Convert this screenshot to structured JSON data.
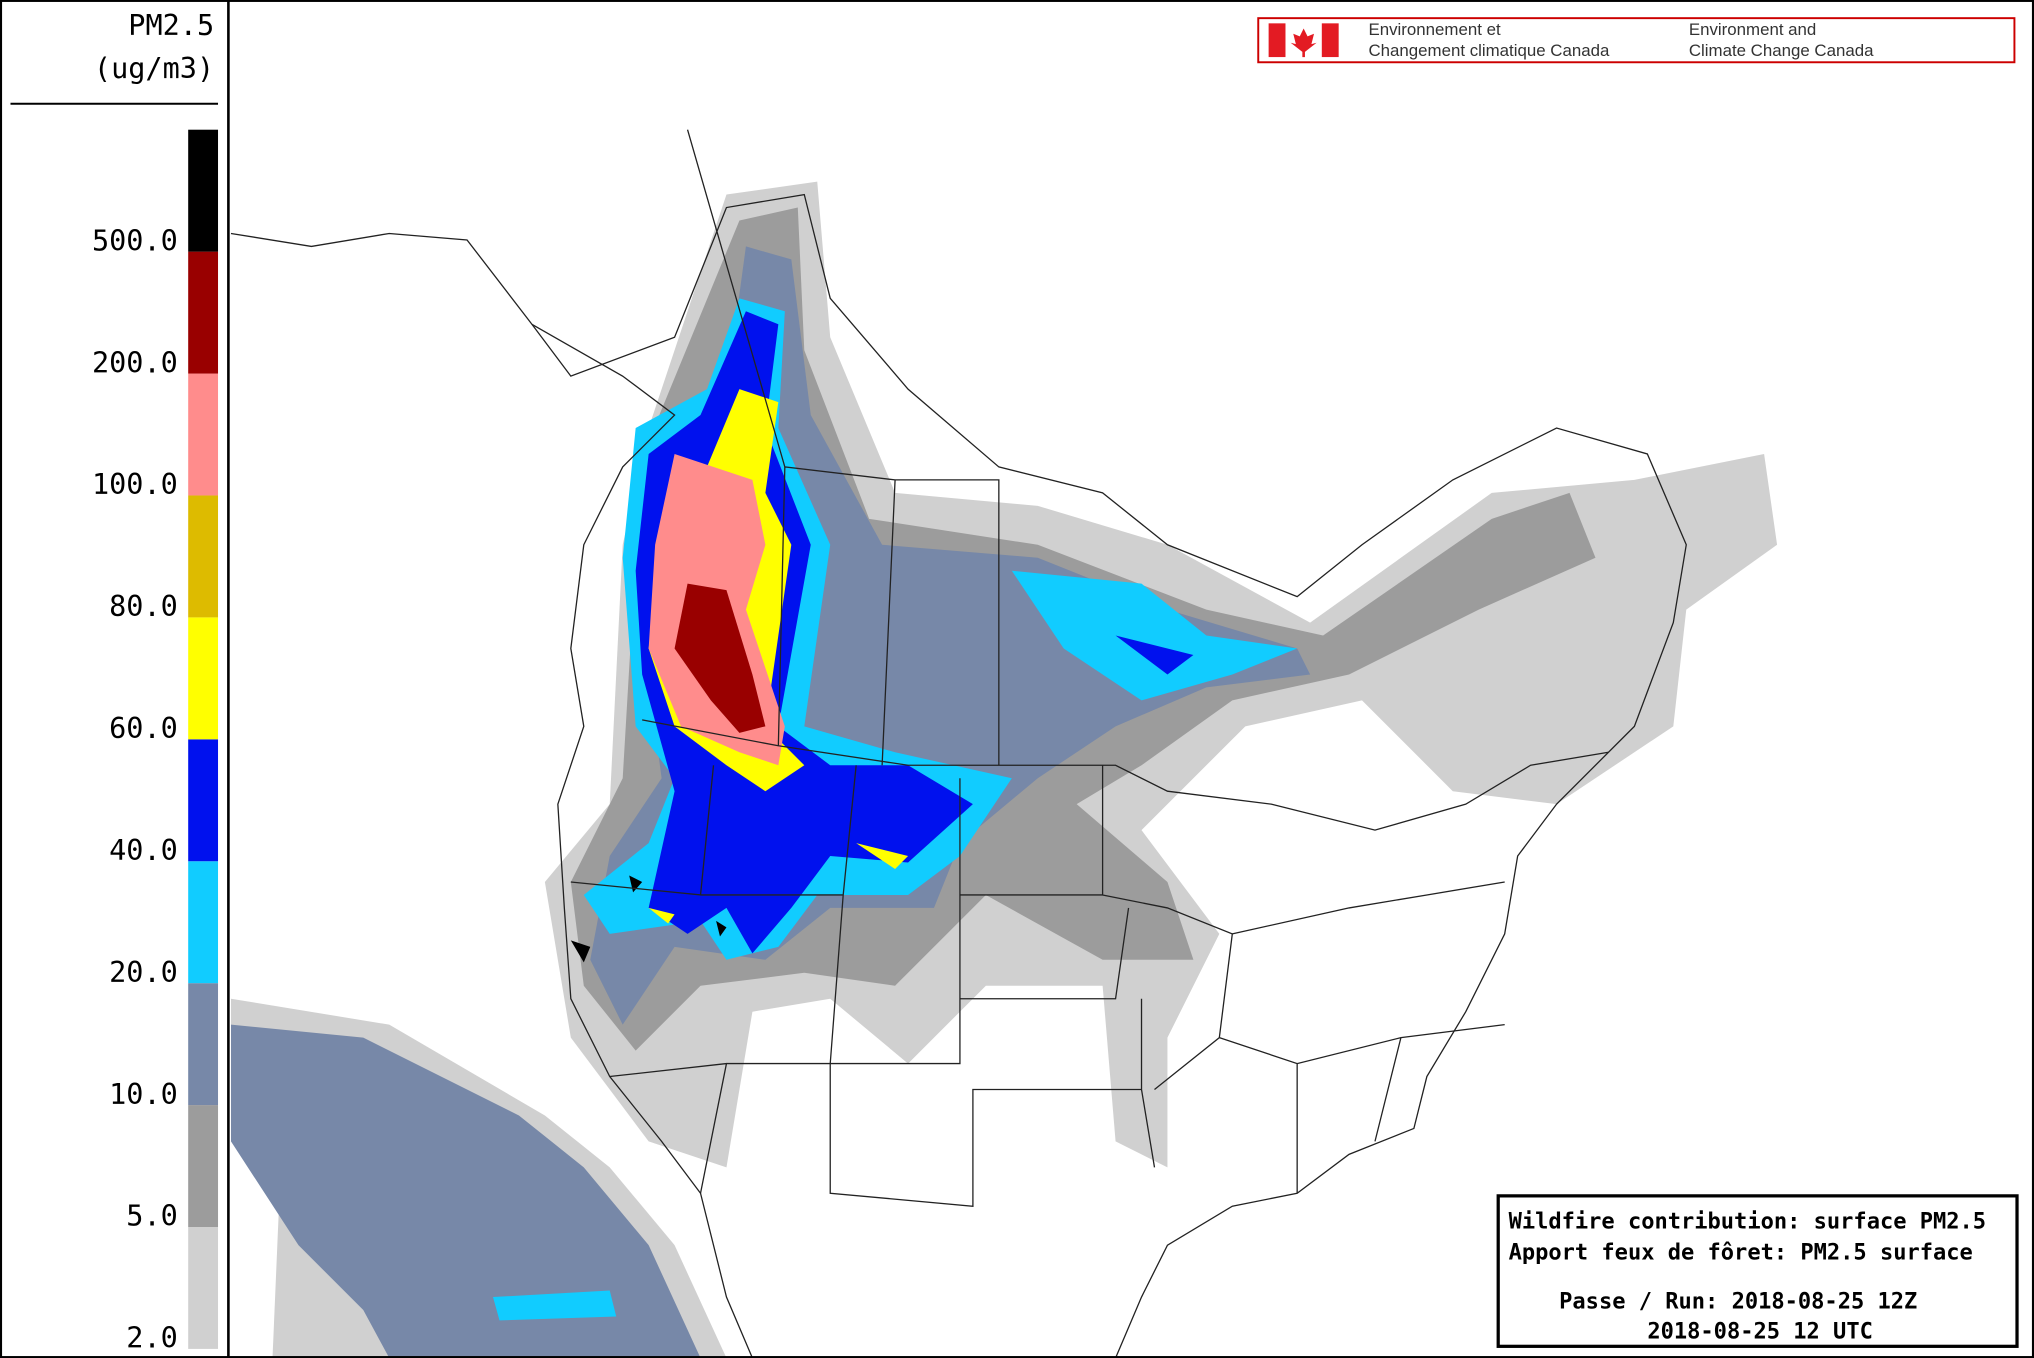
{
  "legend": {
    "title": "PM2.5",
    "units": "(ug/m3)",
    "levels": [
      {
        "label": "2.0",
        "color": "#d0d0d0"
      },
      {
        "label": "5.0",
        "color": "#9c9c9c"
      },
      {
        "label": "10.0",
        "color": "#7788a8"
      },
      {
        "label": "20.0",
        "color": "#11ccff"
      },
      {
        "label": "40.0",
        "color": "#0011ee"
      },
      {
        "label": "60.0",
        "color": "#ffff00"
      },
      {
        "label": "80.0",
        "color": "#ddbb00"
      },
      {
        "label": "100.0",
        "color": "#ff8c8c"
      },
      {
        "label": "200.0",
        "color": "#990000"
      },
      {
        "label": "500.0",
        "color": "#000000"
      }
    ]
  },
  "logo": {
    "fr_line1": "Environnement et",
    "fr_line2": "Changement climatique Canada",
    "en_line1": "Environment and",
    "en_line2": "Climate Change Canada"
  },
  "info": {
    "line1": "Wildfire contribution: surface PM2.5",
    "line2": "Apport feux de fôret: PM2.5 surface",
    "line3": "Passe / Run: 2018-08-25 12Z",
    "line4": "2018-08-25 12 UTC"
  }
}
